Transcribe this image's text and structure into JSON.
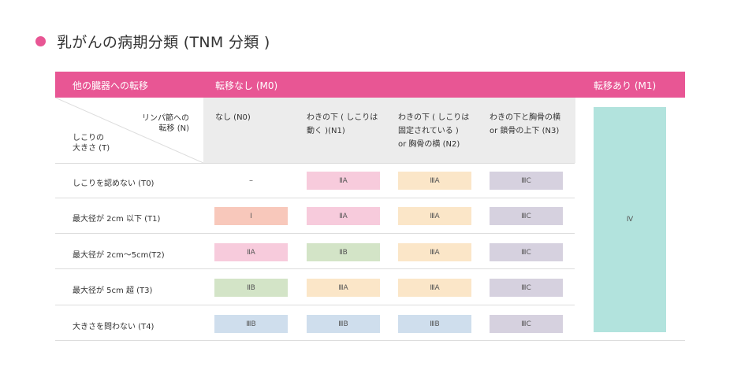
{
  "title": "乳がんの病期分類 (TNM 分類 )",
  "header": {
    "distant": "他の臓器への転移",
    "m0": "転移なし (M0)",
    "m1": "転移あり (M1)"
  },
  "corner": {
    "lymph_line1": "リンパ節への",
    "lymph_line2": "転移 (N)",
    "tumor_line1": "しこりの",
    "tumor_line2": "大きさ (T)"
  },
  "columns": [
    {
      "line1": "なし (N0)",
      "line2": "",
      "line3": ""
    },
    {
      "line1": "わきの下 ( しこりは",
      "line2": "動く )(N1)",
      "line3": ""
    },
    {
      "line1": "わきの下 ( しこりは",
      "line2": "固定されている )",
      "line3": "or 胸骨の横 (N2)"
    },
    {
      "line1": "わきの下と胸骨の横",
      "line2": "or 鎖骨の上下 (N3)",
      "line3": ""
    }
  ],
  "rows": [
    {
      "label": "しこりを認めない (T0)",
      "cells": [
        "–",
        "ⅡA",
        "ⅢA",
        "ⅢC"
      ]
    },
    {
      "label": "最大径が 2cm 以下 (T1)",
      "cells": [
        "Ⅰ",
        "ⅡA",
        "ⅢA",
        "ⅢC"
      ]
    },
    {
      "label": "最大径が 2cm〜5cm(T2)",
      "cells": [
        "ⅡA",
        "ⅡB",
        "ⅢA",
        "ⅢC"
      ]
    },
    {
      "label": "最大径が 5cm 超 (T3)",
      "cells": [
        "ⅡB",
        "ⅢA",
        "ⅢA",
        "ⅢC"
      ]
    },
    {
      "label": "大きさを問わない (T4)",
      "cells": [
        "ⅢB",
        "ⅢB",
        "ⅢB",
        "ⅢC"
      ]
    }
  ],
  "m1_stage": "Ⅳ",
  "colors": {
    "accent": "#e85694",
    "stage_I": "#f8c8bb",
    "stage_IIA": "#f7cbdc",
    "stage_IIB": "#d3e4c7",
    "stage_IIIA": "#fbe6c8",
    "stage_IIIB": "#cfdeed",
    "stage_IIIC": "#d6d1df",
    "stage_IV": "#b2e3dd"
  }
}
